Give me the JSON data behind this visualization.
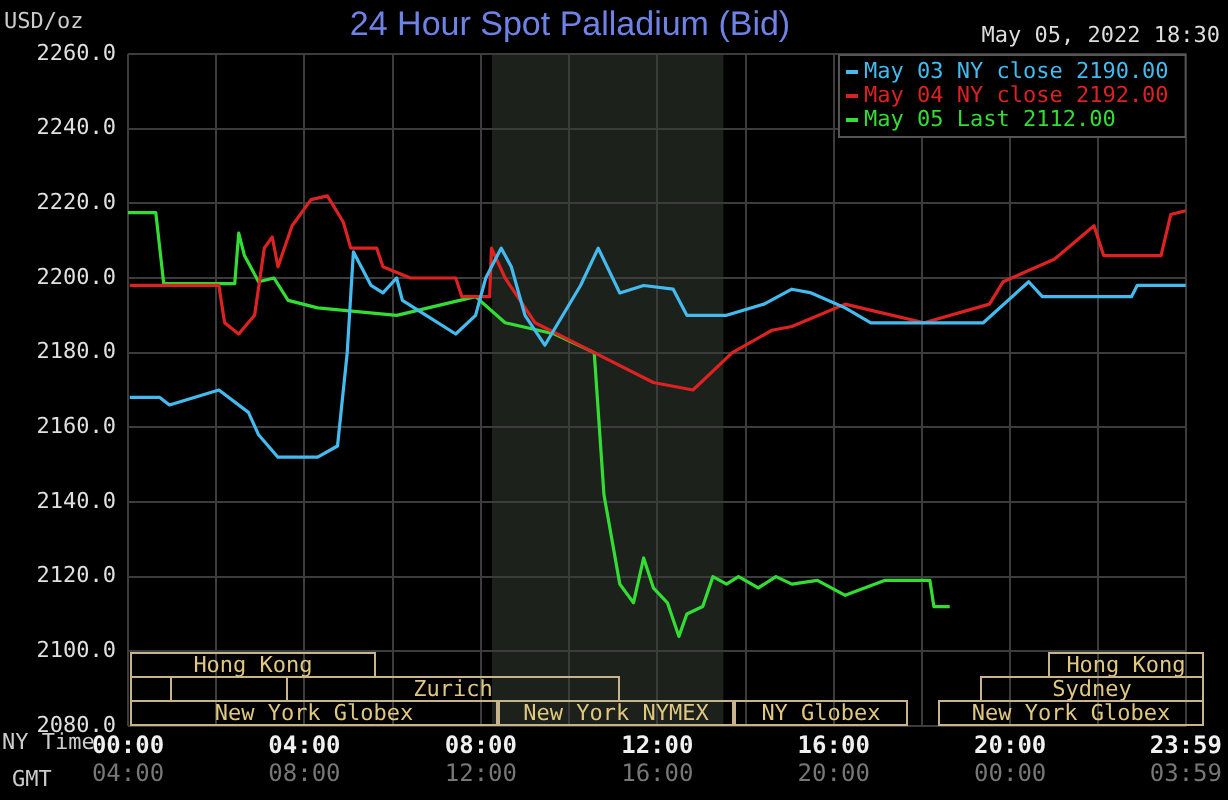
{
  "chart_data": [
    {
      "type": "line",
      "title": "24 Hour Spot Palladium (Bid)",
      "ylabel": "USD/oz",
      "xlabel": "NY Time",
      "x2label": "GMT",
      "annotations": [
        "May 05, 2022 18:30",
        "Hong Kong",
        "Hong Kong",
        "Zurich",
        "Sydney",
        "New York Globex",
        "New York NYMEX",
        "NY Globex",
        "New York Globex"
      ],
      "xlim": [
        0,
        24
      ],
      "xticks": [
        {
          "value": 0,
          "label": "00:00"
        },
        {
          "value": 2,
          "label": null
        },
        {
          "value": 4,
          "label": "04:00"
        },
        {
          "value": 6,
          "label": null
        },
        {
          "value": 8,
          "label": "08:00"
        },
        {
          "value": 10,
          "label": null
        },
        {
          "value": 12,
          "label": "12:00"
        },
        {
          "value": 14,
          "label": null
        },
        {
          "value": 16,
          "label": "16:00"
        },
        {
          "value": 18,
          "label": null
        },
        {
          "value": 20,
          "label": "20:00"
        },
        {
          "value": 22,
          "label": null
        },
        {
          "value": 23.983,
          "label": "23:59"
        }
      ],
      "x2lim": [
        "2022-05-05T04:00",
        "2022-05-06T04:00"
      ],
      "x2ticks": [
        {
          "value": "2022-05-05T04:00",
          "label": "04:00"
        },
        {
          "value": "2022-05-05T08:00",
          "label": "08:00"
        },
        {
          "value": "2022-05-05T12:00",
          "label": "12:00"
        },
        {
          "value": "2022-05-05T16:00",
          "label": "16:00"
        },
        {
          "value": "2022-05-05T20:00",
          "label": "20:00"
        },
        {
          "value": "2022-05-06T00:00",
          "label": "00:00"
        },
        {
          "value": "2022-05-06T03:59",
          "label": "03:59"
        }
      ],
      "ylim": [
        2080,
        2260
      ],
      "yticks": [
        {
          "value": 2080,
          "label": "2080.0"
        },
        {
          "value": 2100,
          "label": "2100.0"
        },
        {
          "value": 2120,
          "label": "2120.0"
        },
        {
          "value": 2140,
          "label": "2140.0"
        },
        {
          "value": 2160,
          "label": "2160.0"
        },
        {
          "value": 2180,
          "label": "2180.0"
        },
        {
          "value": 2200,
          "label": "2200.0"
        },
        {
          "value": 2220,
          "label": "2220.0"
        },
        {
          "value": 2240,
          "label": "2240.0"
        },
        {
          "value": 2260,
          "label": "2260.0"
        }
      ],
      "grid": true,
      "legend": "top right",
      "marker": "none",
      "line_style": "solid",
      "bands": [
        {
          "axis": "x",
          "from": 8.25,
          "to": 13.5,
          "color": "#1c211c"
        }
      ],
      "series": [
        {
          "name": "May 03 NY close 2190.00",
          "color": "#44bbee",
          "x": [
            0.04,
            0.72,
            0.94,
            2.06,
            2.73,
            2.96,
            3.4,
            4.3,
            4.75,
            4.97,
            5.11,
            5.51,
            5.78,
            6.09,
            6.22,
            6.76,
            7.43,
            7.88,
            8.11,
            8.46,
            8.69,
            9.0,
            9.45,
            10.26,
            10.66,
            11.15,
            11.69,
            12.36,
            12.67,
            13.57,
            14.42,
            15.05,
            15.49,
            16.26,
            16.84,
            18.05,
            19.39,
            20.42,
            20.73,
            22.75,
            22.88,
            23.98
          ],
          "values": [
            2168,
            2168,
            2166,
            2170,
            2164,
            2158,
            2152,
            2152,
            2155,
            2180,
            2207,
            2198,
            2196,
            2200,
            2194,
            2190,
            2185,
            2190,
            2200,
            2208,
            2203,
            2190,
            2182,
            2198,
            2208,
            2196,
            2198,
            2197,
            2190,
            2190,
            2193,
            2197,
            2196,
            2192,
            2188,
            2188,
            2188,
            2199,
            2195,
            2195,
            2198,
            2198
          ]
        },
        {
          "name": "May 04 NY close 2192.00",
          "color": "#dd2222",
          "x": [
            0.04,
            0.81,
            2.06,
            2.19,
            2.51,
            2.87,
            3.09,
            3.27,
            3.4,
            3.72,
            4.15,
            4.52,
            4.88,
            5.05,
            5.64,
            5.78,
            6.4,
            7.43,
            7.57,
            8.2,
            8.24,
            8.55,
            9.23,
            10.57,
            11.91,
            12.81,
            13.7,
            14.6,
            15.05,
            16.26,
            16.97,
            18.05,
            19.53,
            19.84,
            21.0,
            21.9,
            22.12,
            23.42,
            23.64,
            23.98
          ],
          "values": [
            2198,
            2198,
            2198,
            2188,
            2185,
            2190,
            2208,
            2211,
            2203,
            2214,
            2221,
            2222,
            2215,
            2208,
            2208,
            2203,
            2200,
            2200,
            2195,
            2195,
            2208,
            2200,
            2188,
            2180,
            2172,
            2170,
            2180,
            2186,
            2187,
            2193,
            2191,
            2188,
            2193,
            2199,
            2205,
            2214,
            2206,
            2206,
            2217,
            2218
          ]
        },
        {
          "name": "May 05 Last 2112.00",
          "color": "#33dd33",
          "x": [
            0,
            0.63,
            0.81,
            2.42,
            2.51,
            2.64,
            2.96,
            3.31,
            3.63,
            4.3,
            6.09,
            7.88,
            8.55,
            9.67,
            10.57,
            10.79,
            11.15,
            11.46,
            11.69,
            11.91,
            12.23,
            12.49,
            12.67,
            13.03,
            13.26,
            13.57,
            13.84,
            14.29,
            14.69,
            15.05,
            15.63,
            16.26,
            17.15,
            18.18,
            18.27,
            18.63
          ],
          "values": [
            2217.5,
            2217.5,
            2198.5,
            2198.5,
            2212,
            2206,
            2199,
            2200,
            2194,
            2192,
            2190,
            2195,
            2188,
            2185,
            2180,
            2142,
            2118,
            2113,
            2125,
            2117,
            2113,
            2104,
            2110,
            2112,
            2120,
            2118,
            2120,
            2117,
            2120,
            2118,
            2119,
            2115,
            2119,
            2119,
            2112,
            2112
          ]
        }
      ]
    }
  ]
}
